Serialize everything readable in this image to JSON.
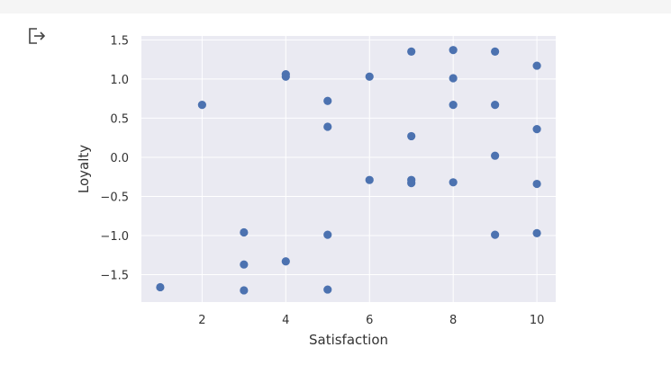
{
  "cell": {
    "output_icon": "output-redirect-icon"
  },
  "chart_data": {
    "type": "scatter",
    "title": "",
    "xlabel": "Satisfaction",
    "ylabel": "Loyalty",
    "xlim": [
      0.55,
      10.45
    ],
    "ylim": [
      -1.85,
      1.55
    ],
    "xticks": [
      2,
      4,
      6,
      8,
      10
    ],
    "xtick_labels": [
      "2",
      "4",
      "6",
      "8",
      "10"
    ],
    "yticks": [
      1.5,
      1.0,
      0.5,
      0.0,
      -0.5,
      -1.0,
      -1.5
    ],
    "ytick_labels": [
      "1.5",
      "1.0",
      "0.5",
      "0.0",
      "−0.5",
      "−1.0",
      "−1.5"
    ],
    "grid": true,
    "background": "#eaeaf2",
    "grid_color": "#ffffff",
    "marker_color": "#4c72b0",
    "points": [
      {
        "x": 1,
        "y": -1.66
      },
      {
        "x": 2,
        "y": 0.67
      },
      {
        "x": 3,
        "y": -0.96
      },
      {
        "x": 3,
        "y": -1.37
      },
      {
        "x": 3,
        "y": -1.7
      },
      {
        "x": 4,
        "y": 1.06
      },
      {
        "x": 4,
        "y": 1.03
      },
      {
        "x": 4,
        "y": -1.33
      },
      {
        "x": 5,
        "y": 0.72
      },
      {
        "x": 5,
        "y": 0.39
      },
      {
        "x": 5,
        "y": -0.99
      },
      {
        "x": 5,
        "y": -1.69
      },
      {
        "x": 6,
        "y": 1.03
      },
      {
        "x": 6,
        "y": -0.29
      },
      {
        "x": 7,
        "y": 1.35
      },
      {
        "x": 7,
        "y": 0.27
      },
      {
        "x": 7,
        "y": -0.29
      },
      {
        "x": 7,
        "y": -0.33
      },
      {
        "x": 8,
        "y": 1.37
      },
      {
        "x": 8,
        "y": 1.01
      },
      {
        "x": 8,
        "y": 0.67
      },
      {
        "x": 8,
        "y": -0.32
      },
      {
        "x": 9,
        "y": 1.35
      },
      {
        "x": 9,
        "y": 0.67
      },
      {
        "x": 9,
        "y": 0.02
      },
      {
        "x": 9,
        "y": -0.99
      },
      {
        "x": 10,
        "y": 1.17
      },
      {
        "x": 10,
        "y": 0.36
      },
      {
        "x": 10,
        "y": -0.34
      },
      {
        "x": 10,
        "y": -0.97
      }
    ]
  }
}
